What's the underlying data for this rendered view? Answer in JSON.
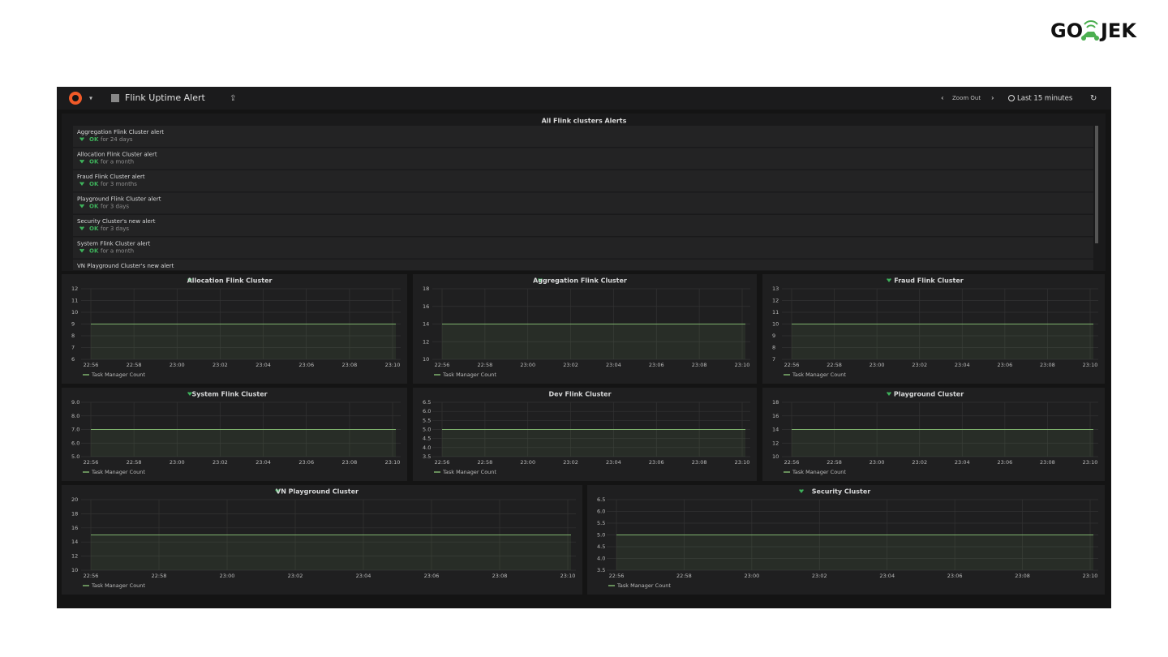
{
  "logo": {
    "left": "GO",
    "right": "JEK"
  },
  "topbar": {
    "dashboard_title": "Flink Uptime Alert",
    "zoom": "Zoom Out",
    "range": "Last 15 minutes"
  },
  "alerts": {
    "title": "All Flink clusters Alerts",
    "rows": [
      {
        "name": "Aggregation Flink Cluster alert",
        "state": "OK",
        "since": "for 24 days"
      },
      {
        "name": "Allocation Flink Cluster alert",
        "state": "OK",
        "since": "for a month"
      },
      {
        "name": "Fraud Flink Cluster alert",
        "state": "OK",
        "since": "for 3 months"
      },
      {
        "name": "Playground Flink Cluster alert",
        "state": "OK",
        "since": "for 3 days"
      },
      {
        "name": "Security Cluster's new alert",
        "state": "OK",
        "since": "for 3 days"
      },
      {
        "name": "System Flink Cluster alert",
        "state": "OK",
        "since": "for a month"
      },
      {
        "name": "VN Playground Cluster's new alert"
      }
    ]
  },
  "time_ticks": [
    "22:56",
    "22:58",
    "23:00",
    "23:02",
    "23:04",
    "23:06",
    "23:08",
    "23:10"
  ],
  "series_name": "Task Manager Count",
  "panels": [
    {
      "title": "Allocation Flink Cluster",
      "alert": true,
      "ylim": [
        6,
        12
      ],
      "yticks": [
        6,
        7,
        8,
        9,
        10,
        11,
        12
      ],
      "value": 9
    },
    {
      "title": "Aggregation Flink Cluster",
      "alert": true,
      "ylim": [
        10,
        18
      ],
      "yticks": [
        10,
        12,
        14,
        16,
        18
      ],
      "value": 14
    },
    {
      "title": "Fraud Flink Cluster",
      "alert": true,
      "ylim": [
        7,
        13
      ],
      "yticks": [
        7,
        8,
        9,
        10,
        11,
        12,
        13
      ],
      "value": 10
    },
    {
      "title": "System Flink Cluster",
      "alert": true,
      "ylim": [
        5,
        9
      ],
      "yticks": [
        {
          "value": 5,
          "label": "5.0"
        },
        {
          "value": 6,
          "label": "6.0"
        },
        {
          "value": 7,
          "label": "7.0"
        },
        {
          "value": 8,
          "label": "8.0"
        },
        {
          "value": 9,
          "label": "9.0"
        }
      ],
      "value": 7
    },
    {
      "title": "Dev Flink Cluster",
      "alert": false,
      "ylim": [
        3.5,
        6.5
      ],
      "yticks": [
        3.5,
        {
          "value": 4,
          "label": "4.0"
        },
        4.5,
        {
          "value": 5,
          "label": "5.0"
        },
        5.5,
        {
          "value": 6,
          "label": "6.0"
        },
        6.5
      ],
      "value": 5
    },
    {
      "title": "Playground Cluster",
      "alert": true,
      "ylim": [
        10,
        18
      ],
      "yticks": [
        10,
        12,
        14,
        16,
        18
      ],
      "value": 14
    },
    {
      "title": "VN Playground Cluster",
      "alert": true,
      "ylim": [
        10,
        20
      ],
      "yticks": [
        10,
        12,
        14,
        16,
        18,
        20
      ],
      "value": 15
    },
    {
      "title": "Security Cluster",
      "alert": true,
      "ylim": [
        3.5,
        6.5
      ],
      "yticks": [
        3.5,
        {
          "value": 4,
          "label": "4.0"
        },
        4.5,
        {
          "value": 5,
          "label": "5.0"
        },
        5.5,
        {
          "value": 6,
          "label": "6.0"
        },
        6.5
      ],
      "value": 5
    }
  ]
}
